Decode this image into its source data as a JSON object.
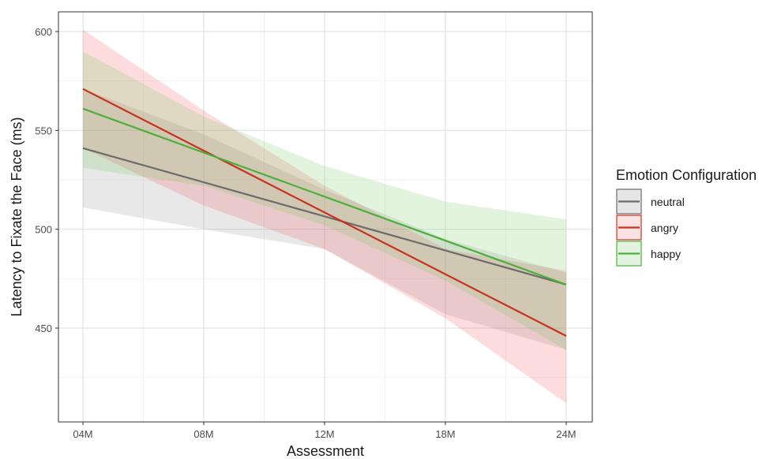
{
  "chart_data": {
    "type": "line",
    "title": "",
    "xlabel": "Assessment",
    "ylabel": "Latency to Fixate the Face (ms)",
    "categories": [
      "04M",
      "08M",
      "12M",
      "18M",
      "24M"
    ],
    "yticks": [
      450,
      500,
      550,
      600
    ],
    "ylim": [
      407,
      610
    ],
    "grid": true,
    "legend_title": "Emotion Configuration",
    "legend_position": "right",
    "series": [
      {
        "name": "neutral",
        "color": "#6b6b6b",
        "start": 541,
        "end": 472,
        "lower": [
          511,
          500,
          490,
          457,
          439
        ],
        "upper": [
          571,
          548,
          520,
          495,
          478
        ]
      },
      {
        "name": "angry",
        "color": "#c8331f",
        "start": 571,
        "end": 446,
        "lower": [
          541,
          512,
          490,
          455,
          412
        ],
        "upper": [
          601,
          560,
          522,
          490,
          479
        ]
      },
      {
        "name": "happy",
        "color": "#4caf3a",
        "start": 561,
        "end": 472,
        "lower": [
          531,
          522,
          502,
          474,
          439
        ],
        "upper": [
          590,
          557,
          532,
          514,
          505
        ]
      }
    ]
  }
}
